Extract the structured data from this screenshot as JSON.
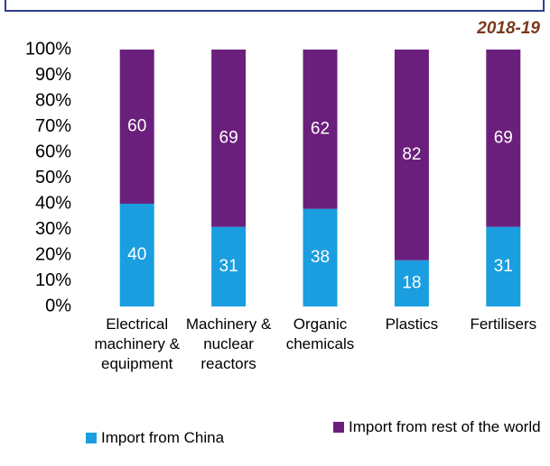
{
  "chart_data": {
    "type": "stacked_bar",
    "subtitle": "2018-19",
    "categories": [
      "Electrical machinery & equipment",
      "Machinery & nuclear reactors",
      "Organic chemicals",
      "Plastics",
      "Fertilisers"
    ],
    "series": [
      {
        "name": "Import from China",
        "color": "#1a9ee0",
        "values": [
          40,
          31,
          38,
          18,
          31
        ]
      },
      {
        "name": "Import from rest of the world",
        "color": "#6b1f7c",
        "values": [
          60,
          69,
          62,
          82,
          69
        ]
      }
    ],
    "ylim": [
      0,
      100
    ],
    "yticks": [
      {
        "value": 0,
        "label": "0%"
      },
      {
        "value": 10,
        "label": "10%"
      },
      {
        "value": 20,
        "label": "20%"
      },
      {
        "value": 30,
        "label": "30%"
      },
      {
        "value": 40,
        "label": "40%"
      },
      {
        "value": 50,
        "label": "50%"
      },
      {
        "value": 60,
        "label": "60%"
      },
      {
        "value": 70,
        "label": "70%"
      },
      {
        "value": 80,
        "label": "80%"
      },
      {
        "value": 90,
        "label": "90%"
      },
      {
        "value": 100,
        "label": "100%"
      }
    ],
    "grid": false,
    "legend": "bottom"
  }
}
